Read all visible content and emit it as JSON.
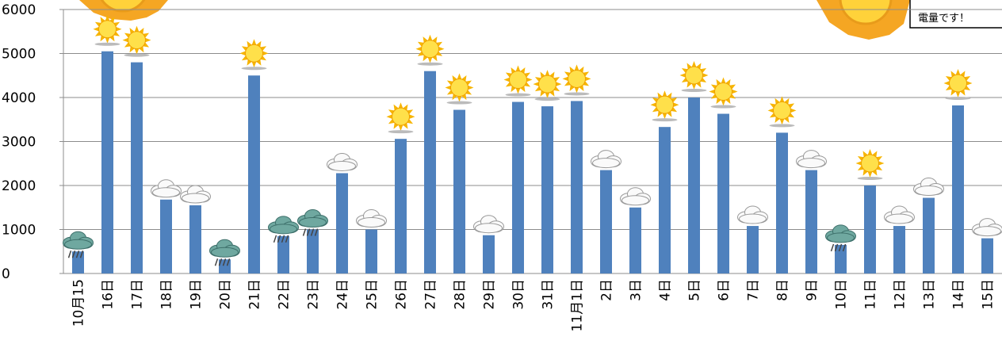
{
  "chart_data": {
    "type": "bar",
    "note_text": "電量です！",
    "categories": [
      "10月15",
      "16日",
      "17日",
      "18日",
      "19日",
      "20日",
      "21日",
      "22日",
      "23日",
      "24日",
      "25日",
      "26日",
      "27日",
      "28日",
      "29日",
      "30日",
      "31日",
      "11月1日",
      "2日",
      "3日",
      "4日",
      "5日",
      "6日",
      "7日",
      "8日",
      "9日",
      "10日",
      "11日",
      "12日",
      "13日",
      "14日",
      "15日"
    ],
    "values": [
      500,
      5050,
      4800,
      1680,
      1550,
      320,
      4500,
      850,
      1000,
      2280,
      1000,
      3060,
      4600,
      3720,
      870,
      3900,
      3800,
      3920,
      2350,
      1500,
      3330,
      4000,
      3630,
      1080,
      3200,
      2350,
      650,
      2000,
      1080,
      1720,
      3820,
      800
    ],
    "color": "#4f81bd",
    "ylim": [
      0,
      6000
    ],
    "yticks": [
      0,
      1000,
      2000,
      3000,
      4000,
      5000,
      6000
    ],
    "grid": true
  }
}
